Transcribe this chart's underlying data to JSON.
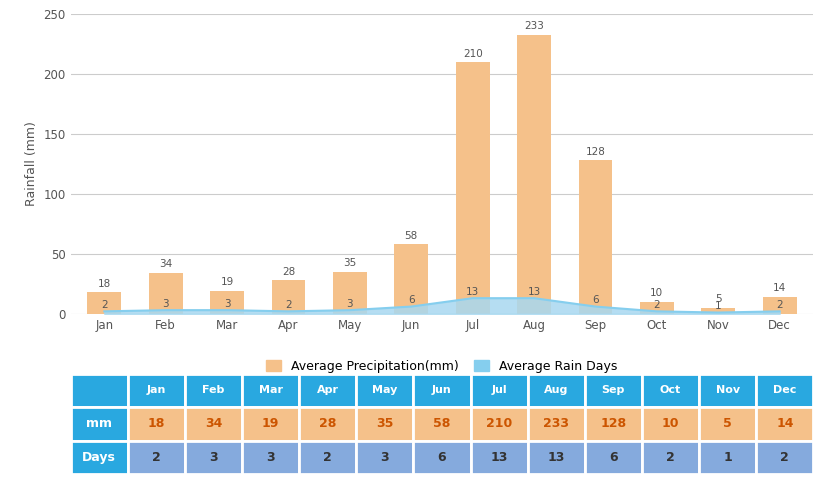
{
  "months": [
    "Jan",
    "Feb",
    "Mar",
    "Apr",
    "May",
    "Jun",
    "Jul",
    "Aug",
    "Sep",
    "Oct",
    "Nov",
    "Dec"
  ],
  "precipitation_mm": [
    18,
    34,
    19,
    28,
    35,
    58,
    210,
    233,
    128,
    10,
    5,
    14
  ],
  "rain_days": [
    2,
    3,
    3,
    2,
    3,
    6,
    13,
    13,
    6,
    2,
    1,
    2
  ],
  "bar_color": "#F5C18A",
  "line_color": "#85CEEE",
  "line_fill_color": "#A8D8F0",
  "ylabel": "Rainfall (mm)",
  "ylim": [
    0,
    250
  ],
  "yticks": [
    0,
    50,
    100,
    150,
    200,
    250
  ],
  "legend_bar_label": "Average Precipitation(mm)",
  "legend_line_label": "Average Rain Days",
  "table_header_color": "#29A8E0",
  "table_mm_color": "#F5C18A",
  "table_days_color": "#85AADD",
  "table_label_color": "#29A8E0",
  "background_color": "#FFFFFF",
  "grid_color": "#CCCCCC",
  "axis_text_color": "#555555",
  "bar_label_color": "#555555",
  "days_label_color": "#555555",
  "table_mm_text_color": "#CC5500",
  "table_days_text_color": "#333333",
  "table_header_text_color": "#FFFFFF",
  "table_label_text_color": "#FFFFFF"
}
